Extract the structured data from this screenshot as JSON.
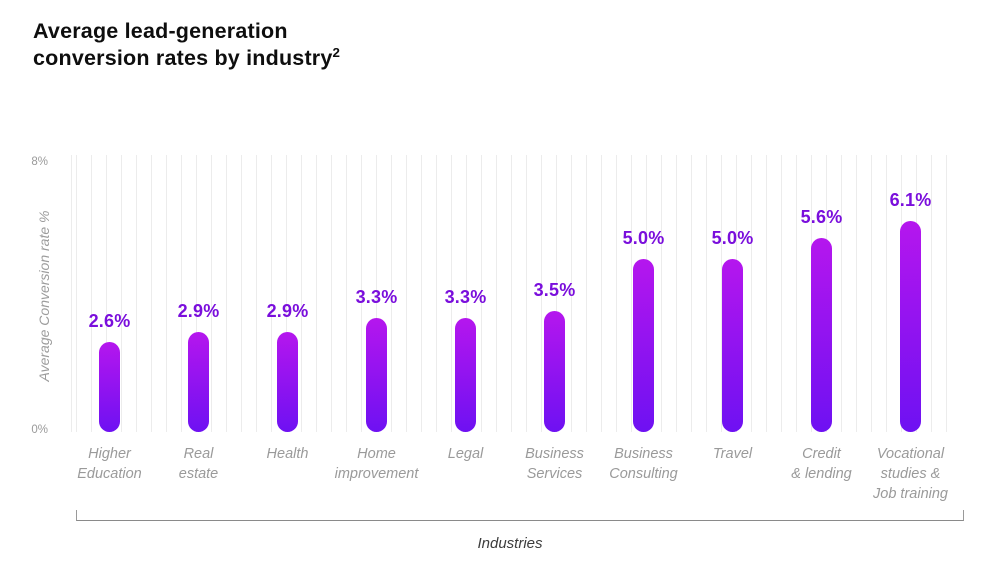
{
  "title": {
    "line1": "Average lead-generation",
    "line2": "conversion rates by industry",
    "superscript": "2"
  },
  "chart_data": {
    "type": "bar",
    "title": "Average lead-generation conversion rates by industry",
    "xlabel": "Industries",
    "ylabel": "Average Conversion rate %",
    "ylim": [
      0,
      8
    ],
    "ytick_top": "8%",
    "ytick_bottom": "0%",
    "grid": "vertical-light-stripes",
    "categories": [
      "Higher Education",
      "Real estate",
      "Health",
      "Home improvement",
      "Legal",
      "Business Services",
      "Business Consulting",
      "Travel",
      "Credit & lending",
      "Vocational studies & Job training"
    ],
    "category_lines": [
      "Higher\nEducation",
      "Real\nestate",
      "Health",
      "Home\nimprovement",
      "Legal",
      "Business\nServices",
      "Business\nConsulting",
      "Travel",
      "Credit\n& lending",
      "Vocational\nstudies &\nJob training"
    ],
    "values": [
      2.6,
      2.9,
      2.9,
      3.3,
      3.3,
      3.5,
      5.0,
      5.0,
      5.6,
      6.1
    ],
    "value_labels": [
      "2.6%",
      "2.9%",
      "2.9%",
      "3.3%",
      "3.3%",
      "3.5%",
      "5.0%",
      "5.0%",
      "5.6%",
      "6.1%"
    ],
    "colors": {
      "bar_gradient_top": "#b516ee",
      "bar_gradient_bottom": "#6e11f2",
      "value_label": "#7a0edc",
      "axis_text": "#9a9a9a",
      "title_text": "#0e0e0e"
    }
  }
}
